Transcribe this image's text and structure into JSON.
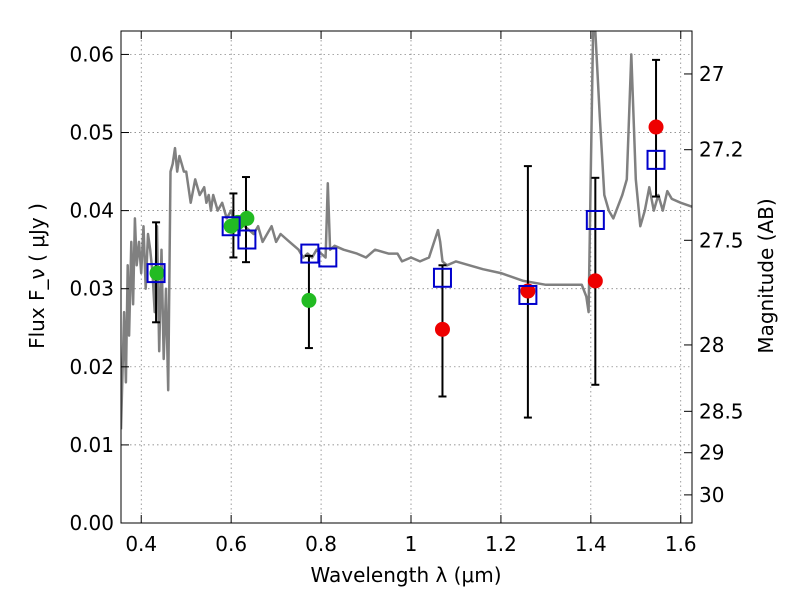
{
  "chart_data": {
    "type": "scatter",
    "title": "",
    "xlabel": "Wavelength  λ (μm)",
    "ylabel": "Flux  F_ν  ( μJy )",
    "ylabel_right": "Magnitude (AB)",
    "xlim": [
      0.355,
      1.625
    ],
    "ylim": [
      0.0,
      0.063
    ],
    "grid": true,
    "x_ticks": [
      0.4,
      0.6,
      0.8,
      1.0,
      1.2,
      1.4,
      1.6
    ],
    "x_tick_labels": [
      "0.4",
      "0.6",
      "0.8",
      "1",
      "1.2",
      "1.4",
      "1.6"
    ],
    "y_ticks": [
      0.0,
      0.01,
      0.02,
      0.03,
      0.04,
      0.05,
      0.06
    ],
    "y_tick_labels": [
      "0.00",
      "0.01",
      "0.02",
      "0.03",
      "0.04",
      "0.05",
      "0.06"
    ],
    "right_ticks": [
      {
        "label": "27",
        "flux": 0.0575
      },
      {
        "label": "27.2",
        "flux": 0.0478
      },
      {
        "label": "27.5",
        "flux": 0.0362
      },
      {
        "label": "28",
        "flux": 0.0228
      },
      {
        "label": "28.5",
        "flux": 0.0143
      },
      {
        "label": "29",
        "flux": 0.009
      },
      {
        "label": "30",
        "flux": 0.0036
      }
    ],
    "colors": {
      "model": "#808080",
      "green": "#22bb22",
      "red": "#ee0000",
      "squares": "#0000cc",
      "errorbars": "#000000"
    },
    "model_spectrum": {
      "x": [
        0.355,
        0.362,
        0.366,
        0.37,
        0.373,
        0.378,
        0.382,
        0.386,
        0.39,
        0.395,
        0.4,
        0.405,
        0.41,
        0.415,
        0.42,
        0.425,
        0.43,
        0.435,
        0.44,
        0.445,
        0.45,
        0.455,
        0.46,
        0.465,
        0.47,
        0.475,
        0.48,
        0.485,
        0.49,
        0.495,
        0.5,
        0.51,
        0.52,
        0.53,
        0.54,
        0.545,
        0.55,
        0.555,
        0.56,
        0.57,
        0.58,
        0.59,
        0.6,
        0.61,
        0.62,
        0.63,
        0.64,
        0.65,
        0.66,
        0.67,
        0.68,
        0.69,
        0.7,
        0.71,
        0.72,
        0.73,
        0.74,
        0.75,
        0.76,
        0.77,
        0.78,
        0.79,
        0.8,
        0.81,
        0.815,
        0.82,
        0.83,
        0.85,
        0.88,
        0.9,
        0.92,
        0.95,
        0.97,
        0.98,
        1.0,
        1.02,
        1.04,
        1.06,
        1.065,
        1.07,
        1.08,
        1.1,
        1.13,
        1.16,
        1.2,
        1.25,
        1.3,
        1.35,
        1.38,
        1.39,
        1.395,
        1.4,
        1.405,
        1.41,
        1.42,
        1.43,
        1.44,
        1.45,
        1.47,
        1.48,
        1.49,
        1.5,
        1.51,
        1.52,
        1.53,
        1.54,
        1.55,
        1.56,
        1.57,
        1.58,
        1.6,
        1.625
      ],
      "y": [
        0.012,
        0.027,
        0.018,
        0.033,
        0.024,
        0.036,
        0.028,
        0.039,
        0.033,
        0.036,
        0.032,
        0.038,
        0.03,
        0.037,
        0.035,
        0.032,
        0.027,
        0.038,
        0.022,
        0.035,
        0.021,
        0.03,
        0.017,
        0.045,
        0.046,
        0.048,
        0.045,
        0.047,
        0.046,
        0.045,
        0.045,
        0.041,
        0.044,
        0.042,
        0.043,
        0.041,
        0.042,
        0.04,
        0.042,
        0.04,
        0.041,
        0.039,
        0.04,
        0.038,
        0.039,
        0.038,
        0.0375,
        0.037,
        0.038,
        0.036,
        0.037,
        0.038,
        0.036,
        0.037,
        0.0365,
        0.036,
        0.0355,
        0.035,
        0.034,
        0.0345,
        0.034,
        0.035,
        0.0345,
        0.034,
        0.0435,
        0.035,
        0.0355,
        0.035,
        0.0345,
        0.034,
        0.035,
        0.0345,
        0.0345,
        0.0335,
        0.034,
        0.0335,
        0.034,
        0.0375,
        0.036,
        0.0335,
        0.033,
        0.0335,
        0.033,
        0.0325,
        0.032,
        0.031,
        0.0305,
        0.0305,
        0.0305,
        0.029,
        0.027,
        0.045,
        0.063,
        0.063,
        0.052,
        0.042,
        0.04,
        0.039,
        0.042,
        0.044,
        0.06,
        0.044,
        0.038,
        0.04,
        0.043,
        0.04,
        0.042,
        0.04,
        0.0425,
        0.0415,
        0.041,
        0.0405
      ]
    },
    "error_bars": [
      {
        "x": 0.433,
        "low": 0.0257,
        "high": 0.0385
      },
      {
        "x": 0.605,
        "low": 0.034,
        "high": 0.0422
      },
      {
        "x": 0.633,
        "low": 0.0334,
        "high": 0.0443
      },
      {
        "x": 0.773,
        "low": 0.0224,
        "high": 0.0342
      },
      {
        "x": 1.07,
        "low": 0.0162,
        "high": 0.033
      },
      {
        "x": 1.26,
        "low": 0.0135,
        "high": 0.0457
      },
      {
        "x": 1.41,
        "low": 0.0177,
        "high": 0.0442
      },
      {
        "x": 1.545,
        "low": 0.0418,
        "high": 0.0593
      }
    ],
    "series": [
      {
        "marker": "circle",
        "color": "green",
        "points": [
          [
            0.435,
            0.032
          ],
          [
            0.6,
            0.038
          ],
          [
            0.615,
            0.0385
          ],
          [
            0.635,
            0.039
          ],
          [
            0.773,
            0.0285
          ]
        ]
      },
      {
        "marker": "circle",
        "color": "red",
        "points": [
          [
            1.07,
            0.0248
          ],
          [
            1.26,
            0.0297
          ],
          [
            1.41,
            0.031
          ],
          [
            1.545,
            0.0507
          ]
        ]
      },
      {
        "marker": "square",
        "color": "squares",
        "points": [
          [
            0.433,
            0.032
          ],
          [
            0.6,
            0.038
          ],
          [
            0.635,
            0.0363
          ],
          [
            0.775,
            0.0345
          ],
          [
            0.815,
            0.034
          ],
          [
            1.07,
            0.0314
          ],
          [
            1.26,
            0.0292
          ],
          [
            1.41,
            0.0388
          ],
          [
            1.545,
            0.0465
          ]
        ]
      }
    ]
  }
}
